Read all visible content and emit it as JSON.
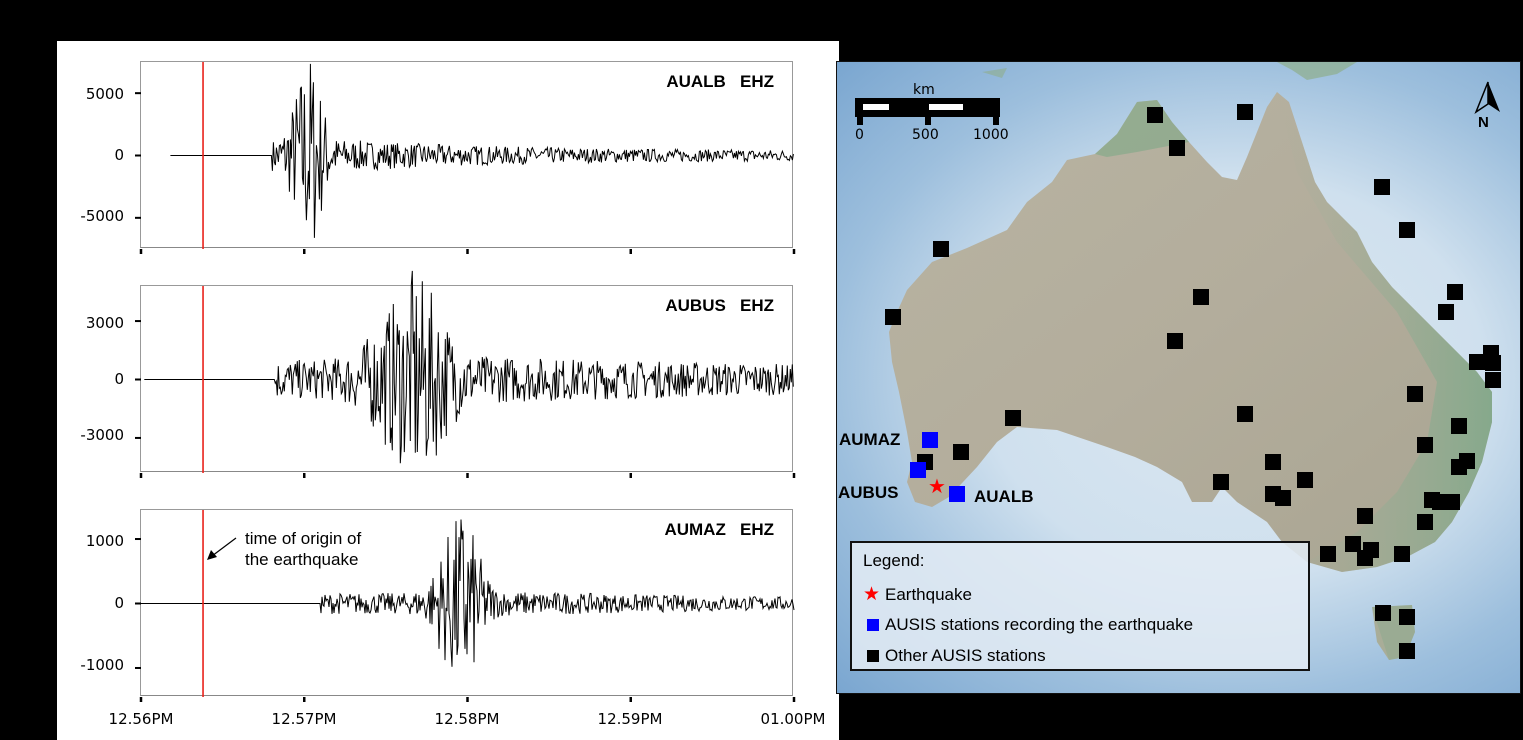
{
  "figure": {
    "left_panel": "Seismograms (vertical EHZ component) recorded at three AUSIS stations",
    "right_panel": "Map of AUSIS stations in Australia"
  },
  "chart_data": [
    {
      "type": "line",
      "title": "AUALB   EHZ",
      "station": "AUALB",
      "channel": "EHZ",
      "xlabel": "",
      "ylabel": "",
      "x_ticks": [
        "12.56PM",
        "12.57PM",
        "12.58PM",
        "12.59PM",
        "01.00PM"
      ],
      "y_ticks": [
        5000,
        0,
        -5000
      ],
      "ylim": [
        -7500,
        7500
      ],
      "origin_time_marker_x": "12.5638PM",
      "signal_onset": "12.5680PM",
      "peak_time": "12.5702PM",
      "peak_amplitude_max": 5800,
      "peak_amplitude_min": -7500,
      "description": "Flat before onset; sharp impulsive burst peaking ~12.570, decaying coda to 01.00PM"
    },
    {
      "type": "line",
      "title": "AUBUS   EHZ",
      "station": "AUBUS",
      "channel": "EHZ",
      "xlabel": "",
      "ylabel": "",
      "x_ticks": [
        "12.56PM",
        "12.57PM",
        "12.58PM",
        "12.59PM",
        "01.00PM"
      ],
      "y_ticks": [
        3000,
        0,
        -3000
      ],
      "ylim": [
        -4800,
        4800
      ],
      "origin_time_marker_x": "12.5638PM",
      "signal_onset": "12.5682PM",
      "peak_time": "12.5765PM",
      "peak_amplitude_max": 4100,
      "peak_amplitude_min": -4600,
      "description": "Emergent onset ~12.568, strongest oscillations 12.575-12.578, long coda"
    },
    {
      "type": "line",
      "title": "AUMAZ   EHZ",
      "station": "AUMAZ",
      "channel": "EHZ",
      "xlabel": "",
      "ylabel": "",
      "x_ticks": [
        "12.56PM",
        "12.57PM",
        "12.58PM",
        "12.59PM",
        "01.00PM"
      ],
      "y_ticks": [
        1000,
        0,
        -1000
      ],
      "ylim": [
        -1450,
        1450
      ],
      "origin_time_marker_x": "12.5638PM",
      "signal_onset": "12.5710PM",
      "peak_time": "12.5795PM",
      "peak_amplitude_max": 1350,
      "peak_amplitude_min": -1330,
      "annotation": "time of origin of the earthquake",
      "description": "Small precursor from 12.571, main burst 12.577-12.580, decaying coda"
    }
  ],
  "annotation": {
    "line1": "time of origin of",
    "line2": "the earthquake"
  },
  "plots": [
    {
      "label": "AUALB   EHZ",
      "yticks": [
        "5000",
        "0",
        "-5000"
      ]
    },
    {
      "label": "AUBUS   EHZ",
      "yticks": [
        "3000",
        "0",
        "-3000"
      ]
    },
    {
      "label": "AUMAZ   EHZ",
      "yticks": [
        "1000",
        "0",
        "-1000"
      ]
    }
  ],
  "xticks": [
    "12.56PM",
    "12.57PM",
    "12.58PM",
    "12.59PM",
    "01.00PM"
  ],
  "map": {
    "scale": {
      "unit": "km",
      "labels": [
        "0",
        "500",
        "1000"
      ]
    },
    "north_label": "N",
    "station_labels": {
      "aumaz": "AUMAZ",
      "aubus": "AUBUS",
      "aualb": "AUALB"
    },
    "legend": {
      "title": "Legend:",
      "earthquake": "Earthquake",
      "recording": "AUSIS stations recording the earthquake",
      "other": "Other AUSIS stations"
    },
    "colors": {
      "earthquake": "#ff0000",
      "recording_station": "#0000ff",
      "other_station": "#000000"
    }
  }
}
